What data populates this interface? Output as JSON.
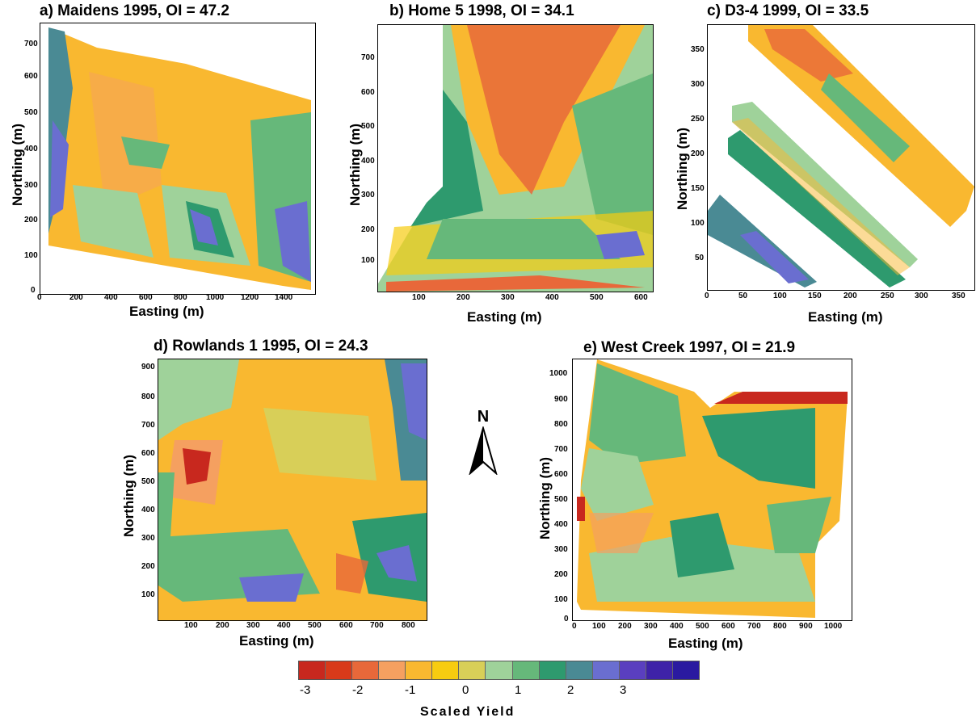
{
  "panels": [
    {
      "id": "a",
      "title": "a) Maidens 1995, OI = 47.2",
      "xlabel": "Easting (m)",
      "ylabel": "Northing (m)",
      "xticks": [
        "0",
        "200",
        "400",
        "600",
        "800",
        "1000",
        "1200",
        "1400"
      ],
      "yticks": [
        "700",
        "600",
        "500",
        "400",
        "300",
        "200",
        "100",
        "0"
      ]
    },
    {
      "id": "b",
      "title": "b) Home 5 1998, OI = 34.1",
      "xlabel": "Easting (m)",
      "ylabel": "Northing (m)",
      "xticks": [
        "100",
        "200",
        "300",
        "400",
        "500",
        "600"
      ],
      "yticks": [
        "700",
        "600",
        "500",
        "400",
        "300",
        "200",
        "100"
      ]
    },
    {
      "id": "c",
      "title": "c) D3-4 1999, OI = 33.5",
      "xlabel": "Easting (m)",
      "ylabel": "Northing (m)",
      "xticks": [
        "0",
        "50",
        "100",
        "150",
        "200",
        "250",
        "300",
        "350"
      ],
      "yticks": [
        "350",
        "300",
        "250",
        "200",
        "150",
        "100",
        "50"
      ]
    },
    {
      "id": "d",
      "title": "d) Rowlands 1 1995, OI = 24.3",
      "xlabel": "Easting (m)",
      "ylabel": "Northing (m)",
      "xticks": [
        "100",
        "200",
        "300",
        "400",
        "500",
        "600",
        "700",
        "800"
      ],
      "yticks": [
        "900",
        "800",
        "700",
        "600",
        "500",
        "400",
        "300",
        "200",
        "100"
      ]
    },
    {
      "id": "e",
      "title": "e) West Creek 1997, OI = 21.9",
      "xlabel": "Easting (m)",
      "ylabel": "Northing (m)",
      "xticks": [
        "0",
        "100",
        "200",
        "300",
        "400",
        "500",
        "600",
        "700",
        "800",
        "900",
        "1000"
      ],
      "yticks": [
        "1000",
        "900",
        "800",
        "700",
        "600",
        "500",
        "400",
        "300",
        "200",
        "100",
        "0"
      ]
    }
  ],
  "north_label": "N",
  "legend": {
    "title": "Scaled Yield",
    "ticks": [
      "-3",
      "-2",
      "-1",
      "0",
      "1",
      "2",
      "3"
    ],
    "colors": [
      "#c8281e",
      "#d83a1a",
      "#e8683a",
      "#f5a060",
      "#f9b830",
      "#f7cc10",
      "#d8cf58",
      "#9fd29a",
      "#66b87a",
      "#2e9a6e",
      "#4a8a94",
      "#6a6ed0",
      "#5a3fbf",
      "#3e22a8",
      "#2a1aa0"
    ]
  }
}
